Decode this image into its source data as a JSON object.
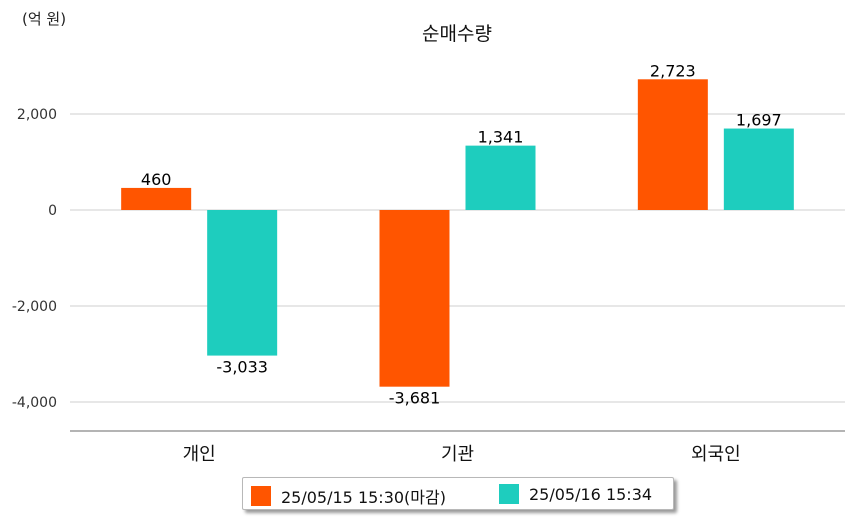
{
  "chart_data": {
    "type": "bar",
    "title": "순매수량",
    "unit_label": "(억 원)",
    "categories": [
      "개인",
      "기관",
      "외국인"
    ],
    "series": [
      {
        "name": "25/05/15 15:30(마감)",
        "values": [
          460,
          -3681,
          2723
        ],
        "color": "#FF5500"
      },
      {
        "name": "25/05/16 15:34",
        "values": [
          -3033,
          1341,
          1697
        ],
        "color": "#1ECDBE"
      }
    ],
    "data_labels": [
      [
        "460",
        "-3,681",
        "2,723"
      ],
      [
        "-3,033",
        "1,341",
        "1,697"
      ]
    ],
    "yticks": [
      2000,
      0,
      -2000,
      -4000
    ],
    "ytick_labels": [
      "2,000",
      "0",
      "-2,000",
      "-4,000"
    ],
    "ylim": [
      -4600,
      3400
    ],
    "grid": true,
    "legend_position": "bottom"
  }
}
